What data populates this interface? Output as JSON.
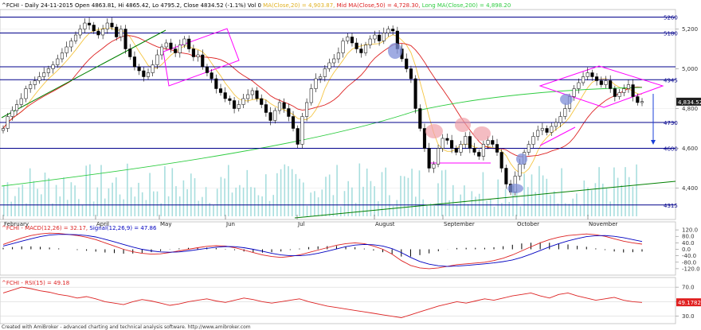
{
  "header": {
    "symbol": "^FCHI",
    "info": "- Daily 24-11-2015 Open 4863.81, Hi 4865.42, Lo 4795.2, Close 4834.52 (-1.1%) Vol 0",
    "ma": "MA(Close,20) = 4,903.87,",
    "midma": "Mid MA(Close,50) = 4,728.30,",
    "longma": "Long MA(Close,200) = 4,898.20"
  },
  "macd_header": {
    "name": "^FCHI - MACD(12,26) = 32.17,",
    "signal": "Signal(12,26,9) = 47.86"
  },
  "rsi_header": {
    "name": "^FCHI - RSI(15) = 49.18"
  },
  "footer": "Created with AmiBroker - advanced charting and technical analysis software. http://www.amibroker.com",
  "colors": {
    "price_line": "#0000c0",
    "hline": "#00008b",
    "ma20": "#f5c542",
    "ma50": "#dd2222",
    "ma200": "#2ecc40",
    "trend": "#008000",
    "magenta": "#ff00ff",
    "volume": "#a8dede",
    "ellipse_blue": "#7f8fd8",
    "ellipse_pink": "#f0a0a8",
    "price_tag": "#202020",
    "rsi_tag": "#e02020"
  },
  "chart_data": [
    {
      "type": "candlestick",
      "y_ticks": [
        4400,
        4600,
        4800,
        5000,
        5200
      ],
      "ylim": [
        4250,
        5290
      ],
      "x_months": [
        "February",
        "April",
        "May",
        "Jun",
        "Jul",
        "August",
        "September",
        "October",
        "November"
      ],
      "level_labels": [
        "5260",
        "5180",
        "4945",
        "4730",
        "4600",
        "4315"
      ],
      "levels": [
        5260,
        5180,
        5010,
        4945,
        4730,
        4600,
        4315
      ],
      "current_price": "4,834.52",
      "closes": [
        4700,
        4760,
        4790,
        4820,
        4850,
        4900,
        4920,
        4940,
        4960,
        4980,
        5000,
        5020,
        5050,
        5080,
        5110,
        5140,
        5170,
        5200,
        5230,
        5220,
        5190,
        5170,
        5200,
        5230,
        5210,
        5160,
        5200,
        5100,
        5060,
        5010,
        4990,
        4960,
        4980,
        5020,
        5070,
        5110,
        5130,
        5100,
        5080,
        5120,
        5150,
        5100,
        5060,
        5070,
        5010,
        4980,
        4950,
        4900,
        4880,
        4850,
        4840,
        4800,
        4820,
        4850,
        4870,
        4890,
        4850,
        4820,
        4780,
        4740,
        4790,
        4830,
        4800,
        4760,
        4700,
        4620,
        4760,
        4830,
        4900,
        4950,
        4960,
        5000,
        5030,
        5050,
        5080,
        5140,
        5160,
        5130,
        5100,
        5080,
        5120,
        5150,
        5170,
        5140,
        5180,
        5200,
        5190,
        5100,
        5050,
        5000,
        4950,
        4800,
        4700,
        4600,
        4500,
        4520,
        4600,
        4650,
        4640,
        4600,
        4580,
        4620,
        4660,
        4600,
        4580,
        4560,
        4620,
        4640,
        4620,
        4580,
        4500,
        4420,
        4380,
        4460,
        4520,
        4580,
        4620,
        4660,
        4690,
        4700,
        4680,
        4710,
        4730,
        4760,
        4800,
        4860,
        4900,
        4930,
        4960,
        4980,
        4960,
        4940,
        4920,
        4940,
        4900,
        4860,
        4880,
        4900,
        4920,
        4860,
        4830,
        4835
      ]
    },
    {
      "type": "line",
      "name": "MACD",
      "y_ticks": [
        120,
        80,
        40,
        0,
        -40,
        -80,
        -120
      ],
      "ylim": [
        -150,
        150
      ],
      "macd": [
        30,
        50,
        70,
        85,
        95,
        100,
        98,
        92,
        85,
        75,
        60,
        40,
        20,
        0,
        -15,
        -25,
        -30,
        -28,
        -20,
        -10,
        0,
        10,
        18,
        22,
        20,
        10,
        -5,
        -20,
        -35,
        -45,
        -50,
        -45,
        -35,
        -20,
        -5,
        10,
        25,
        35,
        40,
        35,
        20,
        0,
        -30,
        -70,
        -100,
        -115,
        -120,
        -115,
        -105,
        -95,
        -90,
        -85,
        -80,
        -70,
        -55,
        -35,
        -10,
        15,
        40,
        60,
        75,
        85,
        90,
        95,
        90,
        80,
        65,
        50,
        40,
        32
      ],
      "signal": [
        20,
        35,
        50,
        65,
        78,
        88,
        92,
        92,
        90,
        85,
        76,
        62,
        46,
        30,
        14,
        0,
        -10,
        -16,
        -18,
        -16,
        -10,
        -2,
        6,
        13,
        17,
        16,
        10,
        0,
        -12,
        -25,
        -35,
        -40,
        -40,
        -35,
        -25,
        -12,
        2,
        16,
        26,
        30,
        28,
        20,
        4,
        -20,
        -50,
        -75,
        -92,
        -102,
        -106,
        -104,
        -100,
        -95,
        -90,
        -84,
        -76,
        -66,
        -50,
        -30,
        -8,
        15,
        35,
        52,
        66,
        78,
        84,
        85,
        80,
        72,
        60,
        48
      ]
    },
    {
      "type": "line",
      "name": "RSI",
      "y_ticks": [
        70,
        50,
        30
      ],
      "ylim": [
        22,
        80
      ],
      "rsi_tag": "49.1782",
      "values": [
        62,
        66,
        70,
        68,
        65,
        63,
        60,
        58,
        55,
        57,
        54,
        50,
        48,
        46,
        50,
        53,
        51,
        48,
        45,
        47,
        50,
        52,
        54,
        51,
        49,
        52,
        55,
        53,
        50,
        48,
        50,
        52,
        54,
        50,
        47,
        44,
        42,
        40,
        38,
        36,
        34,
        32,
        30,
        28,
        32,
        36,
        40,
        44,
        47,
        50,
        48,
        51,
        54,
        52,
        55,
        58,
        60,
        62,
        58,
        55,
        60,
        62,
        58,
        55,
        52,
        54,
        56,
        52,
        50,
        49
      ]
    }
  ]
}
